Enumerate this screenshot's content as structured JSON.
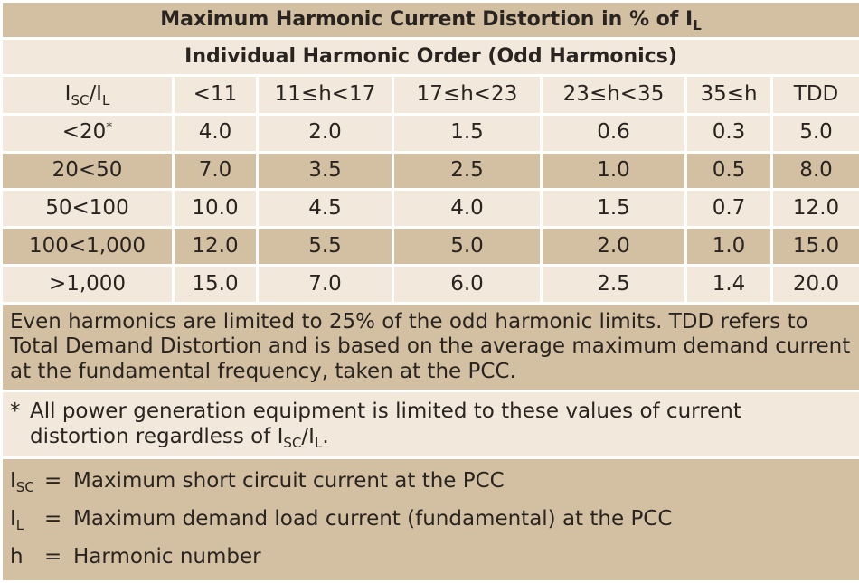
{
  "title": [
    "Maximum Harmonic Current Distortion in % of I",
    "L"
  ],
  "subtitle": "Individual Harmonic Order (Odd Harmonics)",
  "table": {
    "ratio_header": [
      "I",
      "SC",
      "/I",
      "L"
    ],
    "headers": [
      "<11",
      "11≤h<17",
      "17≤h<23",
      "23≤h<35",
      "35≤h",
      "TDD"
    ],
    "rows": [
      {
        "label": [
          "<20",
          "*"
        ],
        "values": [
          "4.0",
          "2.0",
          "1.5",
          "0.6",
          "0.3",
          "5.0"
        ]
      },
      {
        "label": [
          "20<50"
        ],
        "values": [
          "7.0",
          "3.5",
          "2.5",
          "1.0",
          "0.5",
          "8.0"
        ]
      },
      {
        "label": [
          "50<100"
        ],
        "values": [
          "10.0",
          "4.5",
          "4.0",
          "1.5",
          "0.7",
          "12.0"
        ]
      },
      {
        "label": [
          "100<1,000"
        ],
        "values": [
          "12.0",
          "5.5",
          "5.0",
          "2.0",
          "1.0",
          "15.0"
        ]
      },
      {
        "label": [
          ">1,000"
        ],
        "values": [
          "15.0",
          "7.0",
          "6.0",
          "2.5",
          "1.4",
          "20.0"
        ]
      }
    ]
  },
  "note": "Even harmonics are limited to 25% of the odd harmonic limits. TDD refers to Total Demand Distortion and is based on the average maximum demand current at the fundamental frequency, taken at the PCC.",
  "footnote": {
    "mark": "*",
    "text": [
      "All power generation equipment is limited to these values of current distortion regardless of I",
      "SC",
      "/I",
      "L",
      "."
    ]
  },
  "definitions": [
    {
      "symbol": [
        "I",
        "SC"
      ],
      "eq": "=",
      "text": "Maximum short circuit current at the PCC"
    },
    {
      "symbol": [
        "I",
        "L"
      ],
      "eq": "=",
      "text": "Maximum demand load current (fundamental) at the PCC"
    },
    {
      "symbol": [
        "h"
      ],
      "eq": "=",
      "text": "Harmonic number"
    }
  ]
}
